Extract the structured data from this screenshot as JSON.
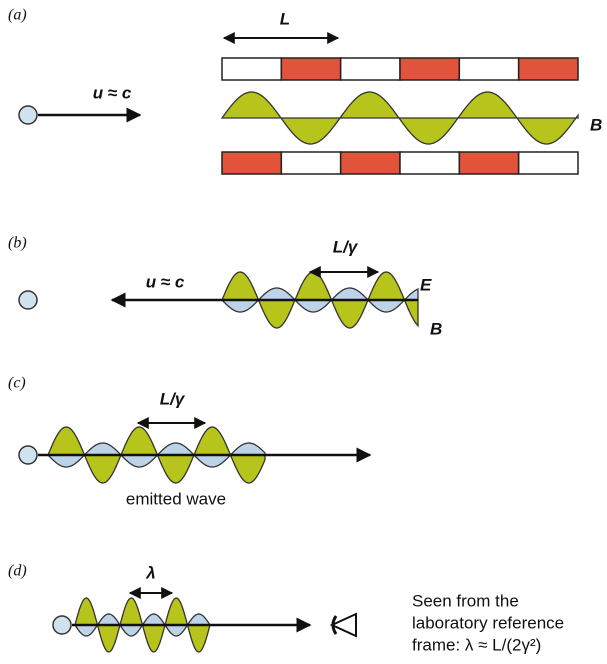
{
  "panels": [
    {
      "label": "(a)",
      "length": "L",
      "speed": "u ≈ c",
      "field": "B"
    },
    {
      "label": "(b)",
      "length": "L/γ",
      "speed": "u ≈ c",
      "field_e": "E",
      "field_b": "B"
    },
    {
      "label": "(c)",
      "length": "L/γ",
      "caption": "emitted wave"
    },
    {
      "label": "(d)",
      "length": "λ",
      "caption_lines": [
        "Seen from the",
        "laboratory reference",
        "frame: λ ≈ L/(2γ²)"
      ]
    }
  ]
}
